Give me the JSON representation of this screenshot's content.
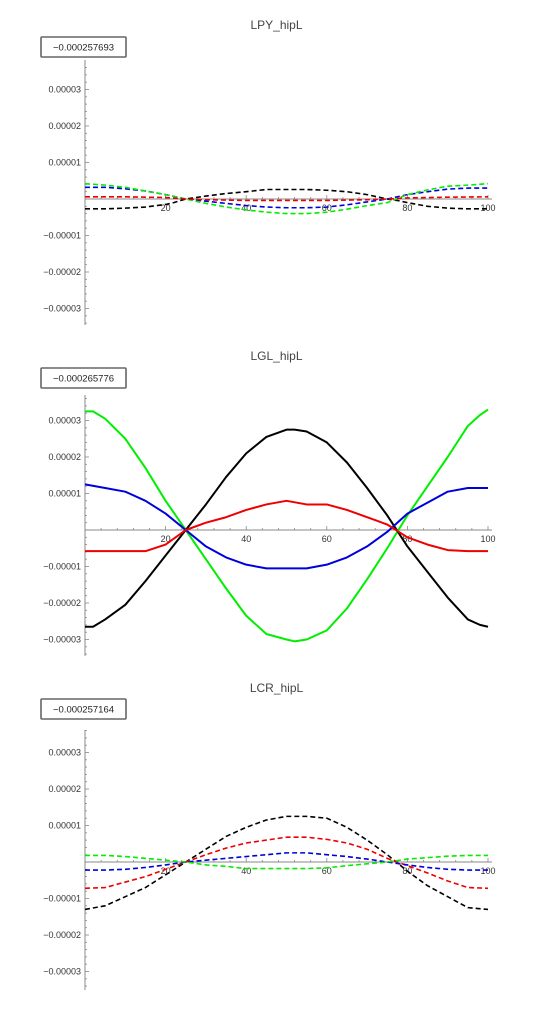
{
  "chart_data": [
    {
      "type": "line",
      "title": "LPY_hipL",
      "badge": "−0.000257693",
      "xlim": [
        0,
        100
      ],
      "ylim": [
        -3.3e-05,
        3.7e-05
      ],
      "xticks": [
        "20",
        "40",
        "60",
        "80",
        "100"
      ],
      "yticks": [
        "0.00003",
        "0.00002",
        "0.00001",
        "−0.00001",
        "−0.00002",
        "−0.00003"
      ],
      "line_style": "dashed",
      "series": [
        {
          "color": "#000000",
          "x": [
            0,
            5,
            10,
            15,
            20,
            22,
            25,
            30,
            35,
            40,
            45,
            50,
            55,
            60,
            65,
            70,
            75,
            78,
            80,
            85,
            90,
            95,
            100
          ],
          "y": [
            -2.7e-06,
            -2.7e-06,
            -2.5e-06,
            -2.2e-06,
            -1.5e-06,
            -1e-06,
            0,
            8e-07,
            1.5e-06,
            2e-06,
            2.6e-06,
            2.6e-06,
            2.6e-06,
            2.4e-06,
            2e-06,
            1.2e-06,
            0,
            -5e-07,
            -1e-06,
            -2e-06,
            -2.5e-06,
            -2.7e-06,
            -2.7e-06
          ]
        },
        {
          "color": "#0000dd",
          "x": [
            0,
            5,
            10,
            15,
            20,
            25,
            30,
            35,
            40,
            45,
            50,
            55,
            60,
            65,
            70,
            75,
            80,
            85,
            90,
            95,
            100
          ],
          "y": [
            3.2e-06,
            3.2e-06,
            2.8e-06,
            2.2e-06,
            1.2e-06,
            0,
            -6e-07,
            -1.2e-06,
            -1.8e-06,
            -2.2e-06,
            -2.4e-06,
            -2.4e-06,
            -2.2e-06,
            -1.6e-06,
            -8e-07,
            0,
            1.2e-06,
            2e-06,
            2.7e-06,
            3e-06,
            3e-06
          ]
        },
        {
          "color": "#00ee00",
          "x": [
            0,
            5,
            10,
            15,
            20,
            25,
            30,
            35,
            40,
            45,
            50,
            55,
            60,
            65,
            70,
            75,
            80,
            85,
            90,
            95,
            100
          ],
          "y": [
            4.2e-06,
            3.8e-06,
            3.2e-06,
            2.2e-06,
            1.2e-06,
            0,
            -1.2e-06,
            -2.2e-06,
            -3e-06,
            -3.6e-06,
            -4e-06,
            -4e-06,
            -3.6e-06,
            -2.8e-06,
            -1.8e-06,
            -1e-06,
            1.2e-06,
            2.5e-06,
            3.5e-06,
            3.8e-06,
            4.2e-06
          ]
        },
        {
          "color": "#ee0000",
          "x": [
            0,
            10,
            20,
            25,
            30,
            40,
            50,
            60,
            70,
            75,
            80,
            90,
            100
          ],
          "y": [
            6e-07,
            6e-07,
            4e-07,
            0,
            -2e-07,
            -4e-07,
            -4e-07,
            -4e-07,
            -2e-07,
            0,
            3e-07,
            5e-07,
            6e-07
          ]
        }
      ]
    },
    {
      "type": "line",
      "title": "LGL_hipL",
      "badge": "−0.000265776",
      "xlim": [
        0,
        100
      ],
      "ylim": [
        -3.3e-05,
        3.6e-05
      ],
      "xticks": [
        "20",
        "40",
        "60",
        "80",
        "100"
      ],
      "yticks": [
        "0.00003",
        "0.00002",
        "0.00001",
        "−0.00001",
        "−0.00002",
        "−0.00003"
      ],
      "line_style": "solid",
      "series": [
        {
          "color": "#00ee00",
          "x": [
            0,
            2,
            5,
            10,
            15,
            20,
            25,
            30,
            35,
            40,
            45,
            50,
            52,
            55,
            60,
            65,
            70,
            75,
            80,
            85,
            90,
            95,
            98,
            100
          ],
          "y": [
            3.25e-05,
            3.25e-05,
            3.05e-05,
            2.5e-05,
            1.7e-05,
            8e-06,
            0,
            -8e-06,
            -1.6e-05,
            -2.35e-05,
            -2.85e-05,
            -3e-05,
            -3.05e-05,
            -3e-05,
            -2.75e-05,
            -2.15e-05,
            -1.35e-05,
            -5e-06,
            4e-06,
            1.2e-05,
            2e-05,
            2.85e-05,
            3.15e-05,
            3.3e-05
          ]
        },
        {
          "color": "#000000",
          "x": [
            0,
            2,
            5,
            10,
            15,
            20,
            25,
            30,
            35,
            40,
            45,
            50,
            52,
            55,
            60,
            65,
            70,
            75,
            80,
            85,
            90,
            95,
            98,
            100
          ],
          "y": [
            -2.65e-05,
            -2.65e-05,
            -2.45e-05,
            -2.05e-05,
            -1.4e-05,
            -7e-06,
            0,
            7e-06,
            1.45e-05,
            2.1e-05,
            2.55e-05,
            2.75e-05,
            2.75e-05,
            2.7e-05,
            2.4e-05,
            1.85e-05,
            1.15e-05,
            4e-06,
            -4.5e-06,
            -1.15e-05,
            -1.85e-05,
            -2.45e-05,
            -2.6e-05,
            -2.65e-05
          ]
        },
        {
          "color": "#0000dd",
          "x": [
            0,
            5,
            10,
            15,
            20,
            25,
            30,
            35,
            40,
            45,
            50,
            55,
            60,
            65,
            70,
            75,
            80,
            85,
            90,
            95,
            100
          ],
          "y": [
            1.25e-05,
            1.15e-05,
            1.05e-05,
            8e-06,
            4.5e-06,
            0,
            -4.5e-06,
            -7.5e-06,
            -9.5e-06,
            -1.05e-05,
            -1.05e-05,
            -1.05e-05,
            -9.5e-06,
            -7.5e-06,
            -4.5e-06,
            -5e-07,
            4.5e-06,
            7.5e-06,
            1.05e-05,
            1.15e-05,
            1.15e-05
          ]
        },
        {
          "color": "#ee0000",
          "x": [
            0,
            5,
            10,
            15,
            20,
            25,
            30,
            35,
            40,
            45,
            50,
            55,
            60,
            65,
            70,
            75,
            80,
            85,
            90,
            95,
            100
          ],
          "y": [
            -5.8e-06,
            -5.8e-06,
            -5.8e-06,
            -5.8e-06,
            -4e-06,
            0,
            2e-06,
            3.5e-06,
            5.5e-06,
            7e-06,
            8e-06,
            7e-06,
            7e-06,
            5.5e-06,
            3.5e-06,
            1.5e-06,
            -2e-06,
            -4e-06,
            -5.5e-06,
            -5.8e-06,
            -5.8e-06
          ]
        }
      ]
    },
    {
      "type": "line",
      "title": "LCR_hipL",
      "badge": "−0.000257164",
      "xlim": [
        0,
        100
      ],
      "ylim": [
        -3.3e-05,
        3.7e-05
      ],
      "xticks": [
        "20",
        "40",
        "60",
        "80",
        "100"
      ],
      "yticks": [
        "0.00003",
        "0.00002",
        "0.00001",
        "−0.00001",
        "−0.00002",
        "−0.00003"
      ],
      "line_style": "dashed",
      "series": [
        {
          "color": "#000000",
          "x": [
            0,
            5,
            10,
            15,
            20,
            25,
            30,
            35,
            40,
            45,
            50,
            55,
            60,
            65,
            70,
            75,
            80,
            85,
            90,
            95,
            100
          ],
          "y": [
            -1.3e-05,
            -1.2e-05,
            -9.5e-06,
            -7e-06,
            -3.5e-06,
            0,
            3.5e-06,
            7e-06,
            9.5e-06,
            1.15e-05,
            1.25e-05,
            1.25e-05,
            1.2e-05,
            9.5e-06,
            6e-06,
            2e-06,
            -2.5e-06,
            -6.5e-06,
            -9.5e-06,
            -1.25e-05,
            -1.3e-05
          ]
        },
        {
          "color": "#ee0000",
          "x": [
            0,
            5,
            10,
            15,
            20,
            25,
            30,
            35,
            40,
            45,
            50,
            55,
            60,
            65,
            70,
            75,
            80,
            85,
            90,
            95,
            100
          ],
          "y": [
            -7.2e-06,
            -7e-06,
            -5.5e-06,
            -4e-06,
            -2e-06,
            0,
            2e-06,
            3.8e-06,
            5.2e-06,
            6e-06,
            6.8e-06,
            6.8e-06,
            6.2e-06,
            5.2e-06,
            3.5e-06,
            1e-06,
            -1e-06,
            -3e-06,
            -5.2e-06,
            -7e-06,
            -7.2e-06
          ]
        },
        {
          "color": "#0000dd",
          "x": [
            0,
            5,
            10,
            15,
            20,
            25,
            30,
            35,
            40,
            45,
            50,
            55,
            60,
            65,
            70,
            75,
            80,
            85,
            90,
            95,
            100
          ],
          "y": [
            -2.2e-06,
            -2.2e-06,
            -2e-06,
            -1.5e-06,
            -8e-07,
            0,
            5e-07,
            1e-06,
            1.5e-06,
            2e-06,
            2.5e-06,
            2.5e-06,
            2e-06,
            1.5e-06,
            8e-07,
            0,
            -8e-07,
            -1.5e-06,
            -2e-06,
            -2.2e-06,
            -2.2e-06
          ]
        },
        {
          "color": "#00ee00",
          "x": [
            0,
            5,
            10,
            15,
            20,
            25,
            30,
            35,
            40,
            45,
            50,
            55,
            60,
            65,
            70,
            75,
            80,
            85,
            90,
            95,
            100
          ],
          "y": [
            1.8e-06,
            1.8e-06,
            1.5e-06,
            1e-06,
            5e-07,
            0,
            -8e-07,
            -1.2e-06,
            -1.8e-06,
            -1.8e-06,
            -1.8e-06,
            -1.8e-06,
            -1.6e-06,
            -1e-06,
            -5e-07,
            0,
            8e-07,
            1.2e-06,
            1.6e-06,
            1.8e-06,
            1.8e-06
          ]
        }
      ]
    }
  ]
}
